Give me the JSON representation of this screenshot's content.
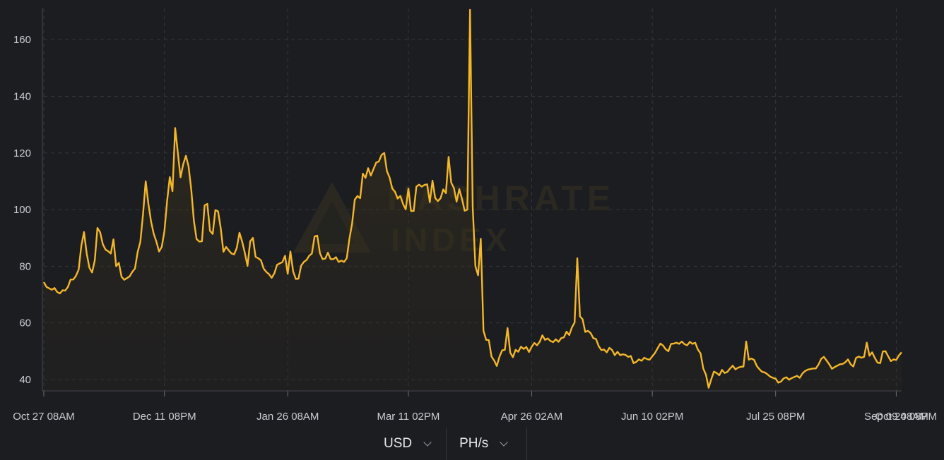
{
  "chart_data": {
    "type": "area",
    "y_ticks": [
      40,
      60,
      80,
      100,
      120,
      140,
      160
    ],
    "ylim": [
      36,
      171
    ],
    "x_tick_labels": [
      "Oct 27 08AM",
      "Dec 11 08PM",
      "Jan 26 08AM",
      "Mar 11 02PM",
      "Apr 26 02AM",
      "Jun 10 02PM",
      "Jul 25 08PM",
      "Sep 09 08AM",
      "Oct 24 08PM"
    ],
    "x_tick_index": [
      0,
      45,
      91,
      136,
      182,
      227,
      273,
      318,
      364
    ],
    "line_color": "#f4b728",
    "watermark": [
      "HASHRATE",
      "INDEX"
    ],
    "grid": true,
    "series": [
      {
        "values": [
          74.4,
          72.7,
          72.2,
          71.7,
          72.3,
          70.9,
          70.4,
          71.5,
          71.4,
          72.7,
          75.3,
          75.3,
          76.6,
          78.8,
          87.2,
          92.1,
          84.5,
          79.5,
          77.8,
          82.0,
          93.5,
          92.0,
          87.8,
          85.9,
          85.3,
          84.5,
          89.5,
          80.0,
          81.2,
          76.3,
          75.2,
          75.8,
          76.4,
          78.0,
          79.2,
          85.0,
          88.6,
          98.3,
          110.0,
          102.0,
          95.8,
          91.5,
          88.7,
          85.2,
          86.8,
          92.4,
          103.0,
          111.5,
          106.5,
          128.8,
          120.0,
          111.4,
          116.0,
          119.0,
          115.2,
          107.0,
          96.0,
          89.6,
          88.7,
          88.8,
          101.5,
          102.0,
          92.5,
          91.4,
          99.8,
          99.4,
          93.4,
          85.1,
          86.8,
          85.6,
          84.5,
          84.2,
          86.5,
          91.8,
          88.7,
          84.7,
          80.1,
          88.8,
          90.0,
          83.3,
          82.8,
          82.1,
          79.2,
          78.0,
          77.2,
          75.9,
          77.5,
          80.5,
          81.0,
          81.4,
          83.7,
          77.3,
          85.2,
          78.3,
          75.5,
          75.6,
          80.2,
          81.5,
          82.2,
          83.7,
          84.5,
          90.5,
          90.8,
          84.6,
          82.5,
          82.7,
          84.8,
          82.5,
          82.5,
          83.2,
          81.5,
          82.0,
          81.5,
          82.8,
          89.7,
          95.0,
          103.5,
          104.8,
          104.0,
          112.7,
          111.2,
          114.6,
          112.0,
          114.3,
          116.6,
          117.0,
          119.3,
          120.0,
          113.6,
          111.3,
          107.4,
          106.3,
          103.9,
          104.8,
          102.0,
          100.1,
          107.4,
          99.5,
          99.5,
          108.1,
          108.8,
          108.1,
          108.7,
          108.9,
          102.6,
          110.2,
          104.1,
          103.0,
          104.0,
          107.1,
          105.8,
          118.6,
          109.5,
          107.6,
          102.8,
          107.2,
          103.8,
          99.6,
          100.0,
          170.5,
          101.0,
          80.0,
          76.8,
          89.7,
          57.3,
          54.0,
          53.9,
          48.1,
          46.7,
          44.8,
          48.1,
          50.3,
          50.5,
          58.2,
          49.5,
          47.9,
          50.5,
          49.8,
          51.6,
          50.8,
          51.5,
          49.7,
          51.6,
          52.9,
          52.1,
          53.3,
          55.6,
          54.0,
          54.5,
          53.6,
          53.2,
          54.2,
          53.3,
          54.6,
          54.9,
          56.9,
          55.7,
          58.4,
          60.1,
          82.8,
          62.3,
          61.3,
          56.8,
          57.2,
          56.4,
          54.6,
          54.3,
          51.8,
          50.4,
          50.6,
          49.6,
          51.2,
          50.4,
          48.6,
          49.8,
          48.6,
          48.9,
          48.7,
          48.0,
          48.3,
          45.8,
          46.2,
          47.1,
          46.6,
          47.7,
          47.2,
          47.0,
          48.2,
          49.4,
          51.1,
          52.7,
          52.0,
          50.7,
          50.0,
          52.6,
          52.7,
          53.0,
          52.6,
          53.4,
          52.5,
          52.1,
          53.3,
          52.6,
          53.0,
          50.6,
          49.2,
          43.9,
          41.7,
          37.1,
          40.1,
          42.8,
          42.3,
          41.5,
          43.4,
          42.3,
          42.7,
          43.9,
          44.9,
          43.6,
          44.2,
          44.5,
          44.6,
          53.4,
          47.0,
          47.4,
          46.9,
          44.8,
          43.6,
          42.7,
          42.5,
          41.8,
          41.0,
          40.6,
          40.3,
          38.9,
          39.3,
          40.4,
          40.8,
          39.9,
          40.5,
          40.9,
          41.3,
          40.6,
          42.1,
          43.0,
          43.5,
          43.7,
          43.9,
          43.9,
          45.3,
          47.3,
          48.0,
          46.7,
          45.4,
          43.8,
          44.4,
          44.9,
          45.4,
          45.5,
          46.1,
          47.1,
          45.4,
          44.6,
          47.6,
          48.1,
          47.7,
          48.0,
          53.0,
          48.4,
          49.6,
          47.6,
          46.0,
          45.8,
          49.9,
          50.0,
          48.2,
          46.5,
          47.1,
          46.9,
          48.5,
          49.6
        ]
      }
    ]
  },
  "controls": {
    "currency": {
      "label": "USD",
      "icon": "chevron-down-icon"
    },
    "unit": {
      "label": "PH/s",
      "icon": "chevron-down-icon"
    }
  }
}
